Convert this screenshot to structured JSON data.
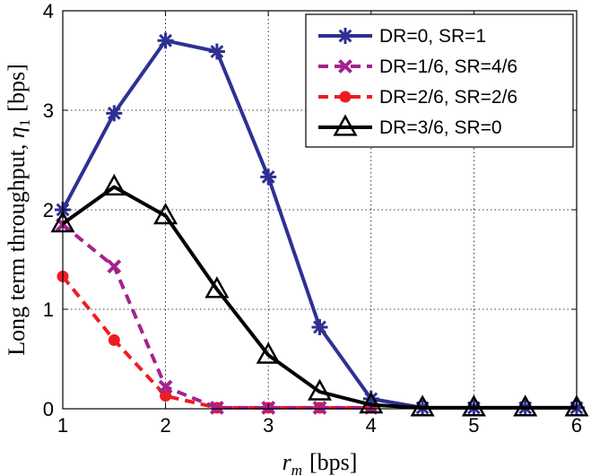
{
  "chart_data": {
    "type": "line",
    "title": "",
    "xlabel": "r_m [bps]",
    "ylabel": "Long term throughput, η1 [bps]",
    "xlabel_parts": {
      "var": "r",
      "sub": "m",
      "unit": "[bps]"
    },
    "ylabel_parts": {
      "text": "Long term throughput, ",
      "var": "η",
      "sub": "1",
      "unit": "[bps]"
    },
    "xlim": [
      1,
      6
    ],
    "ylim": [
      0,
      4
    ],
    "xticks": [
      "1",
      "2",
      "3",
      "4",
      "5",
      "6"
    ],
    "yticks": [
      "0",
      "1",
      "2",
      "3",
      "4"
    ],
    "grid": "dotted",
    "legend_position": "top-right",
    "x": [
      1,
      1.5,
      2,
      2.5,
      3,
      3.5,
      4,
      4.5,
      5,
      5.5,
      6
    ],
    "series": [
      {
        "name": "DR=0, SR=1",
        "color": "#2e3192",
        "marker": "asterisk",
        "linestyle": "solid",
        "x": [
          1,
          1.5,
          2,
          2.5,
          3,
          3.5,
          4,
          4.5,
          5,
          5.5,
          6
        ],
        "values": [
          2.0,
          2.97,
          3.7,
          3.59,
          2.33,
          0.82,
          0.1,
          0.01,
          0.01,
          0.01,
          0.01
        ]
      },
      {
        "name": "DR=1/6, SR=4/6",
        "color": "#a3238e",
        "marker": "x",
        "linestyle": "dashed",
        "x": [
          1,
          1.5,
          2,
          2.5,
          3,
          3.5,
          4
        ],
        "values": [
          1.85,
          1.43,
          0.22,
          0.01,
          0.01,
          0.01,
          0.01
        ]
      },
      {
        "name": "DR=2/6, SR=2/6",
        "color": "#ed1c24",
        "marker": "dot",
        "linestyle": "dashed",
        "x": [
          1,
          1.5,
          2,
          2.5,
          3,
          3.5,
          4
        ],
        "values": [
          1.33,
          0.69,
          0.13,
          0.01,
          0.01,
          0.01,
          0.01
        ]
      },
      {
        "name": "DR=3/6, SR=0",
        "color": "#000000",
        "marker": "triangle",
        "linestyle": "solid",
        "x": [
          1,
          1.5,
          2,
          2.5,
          3,
          3.5,
          4,
          4.5,
          5,
          5.5,
          6
        ],
        "values": [
          1.86,
          2.23,
          1.94,
          1.2,
          0.54,
          0.17,
          0.04,
          0.01,
          0.01,
          0.01,
          0.01
        ]
      }
    ]
  }
}
